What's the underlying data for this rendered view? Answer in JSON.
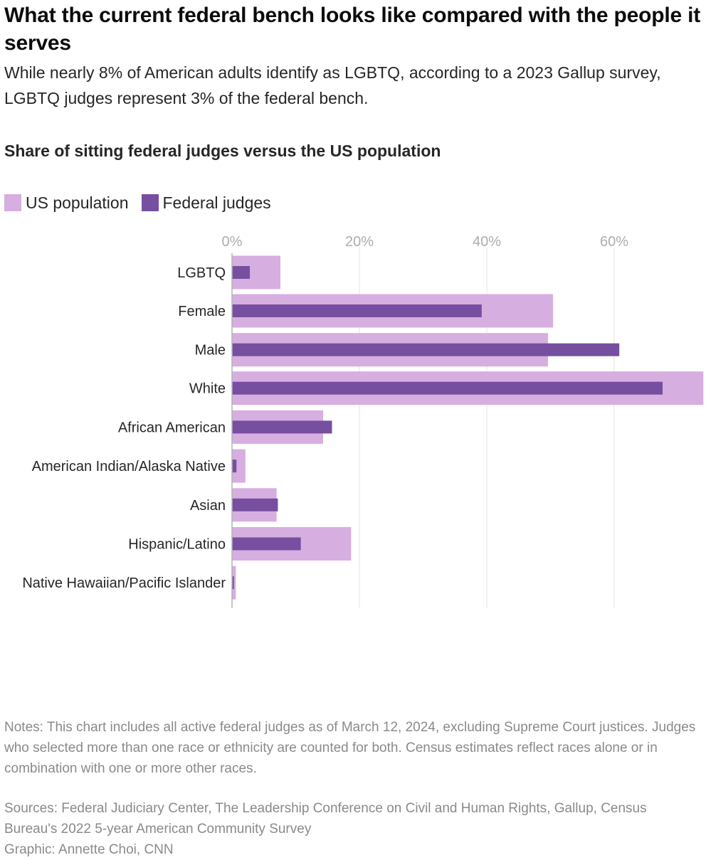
{
  "headline": "What the current federal bench looks like compared with the people it serves",
  "dek": "While nearly 8% of American adults identify as LGBTQ, according to a 2023 Gallup survey, LGBTQ judges represent 3% of the federal bench.",
  "colors": {
    "us_population": "#d7aee0",
    "federal_judges": "#764fa0",
    "grid": "#e6e6e6",
    "axis": "#b4b4b4",
    "tick_text": "#adadad"
  },
  "chart_data": {
    "type": "bar",
    "orientation": "horizontal",
    "title": "Share of sitting federal judges versus the US population",
    "legend": [
      "US population",
      "Federal judges"
    ],
    "legend_position": "top-left",
    "x_ticks": [
      0,
      20,
      40,
      60
    ],
    "x_tick_labels": [
      "0%",
      "20%",
      "40%",
      "60%"
    ],
    "xlim": [
      0,
      74
    ],
    "grid": true,
    "groups": [
      [
        "LGBTQ"
      ],
      [
        "Female",
        "Male"
      ],
      [
        "White",
        "African American",
        "American Indian/Alaska Native",
        "Asian",
        "Hispanic/Latino",
        "Native Hawaiian/Pacific Islander"
      ]
    ],
    "categories": [
      "LGBTQ",
      "Female",
      "Male",
      "White",
      "African American",
      "American Indian/Alaska Native",
      "Asian",
      "Hispanic/Latino",
      "Native Hawaiian/Pacific Islander"
    ],
    "series": [
      {
        "name": "US population",
        "values": [
          7.6,
          50.4,
          49.6,
          74.0,
          14.3,
          2.1,
          7.0,
          18.7,
          0.6
        ]
      },
      {
        "name": "Federal judges",
        "values": [
          2.8,
          39.2,
          60.8,
          67.6,
          15.7,
          0.7,
          7.2,
          10.8,
          0.3
        ]
      }
    ]
  },
  "notes": "Notes: This chart includes all active federal judges as of March 12, 2024, excluding Supreme Court justices. Judges who selected more than one race or ethnicity are counted for both. Census estimates reflect races alone or in combination with one or more other races.",
  "sources": {
    "line1": "Sources: Federal Judiciary Center, The Leadership Conference on Civil and Human Rights, Gallup, Census Bureau's 2022 5-year American Community Survey",
    "line2": "Graphic: Annette Choi, CNN"
  }
}
